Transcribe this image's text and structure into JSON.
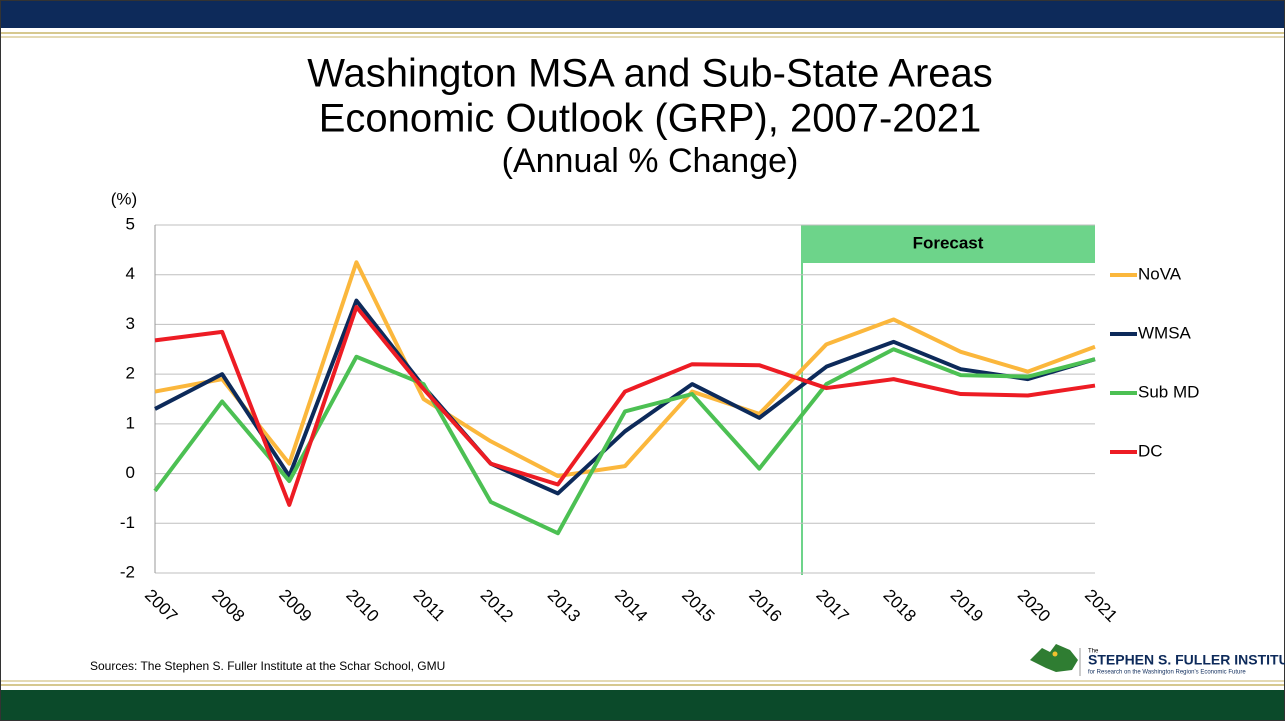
{
  "chart_data": {
    "type": "line",
    "title": [
      "Washington MSA and Sub-State Areas",
      "Economic Outlook (GRP), 2007-2021"
    ],
    "subtitle": "(Annual % Change)",
    "y_label": "(%)",
    "annotation": "Forecast",
    "source": "Sources: The Stephen S. Fuller Institute at the Schar School, GMU",
    "logo": {
      "small": "The",
      "name": "STEPHEN S. FULLER INSTITUTE",
      "tagline": "for Research on the Washington Region's Economic Future"
    },
    "categories": [
      "2007",
      "2008",
      "2009",
      "2010",
      "2011",
      "2012",
      "2013",
      "2014",
      "2015",
      "2016",
      "2017",
      "2018",
      "2019",
      "2020",
      "2021"
    ],
    "series": [
      {
        "name": "NoVA",
        "color": "#fbb73c",
        "values": [
          1.65,
          1.9,
          0.2,
          4.25,
          1.5,
          0.65,
          -0.05,
          0.15,
          1.65,
          1.2,
          2.6,
          3.1,
          2.45,
          2.05,
          2.55
        ]
      },
      {
        "name": "WMSA",
        "color": "#0d2a5a",
        "values": [
          1.3,
          2.0,
          -0.05,
          3.48,
          1.75,
          0.2,
          -0.4,
          0.85,
          1.8,
          1.12,
          2.15,
          2.65,
          2.1,
          1.9,
          2.3
        ]
      },
      {
        "name": "Sub MD",
        "color": "#4cc053",
        "values": [
          -0.35,
          1.45,
          -0.15,
          2.35,
          1.8,
          -0.57,
          -1.2,
          1.25,
          1.6,
          0.1,
          1.8,
          2.5,
          1.98,
          1.95,
          2.3
        ]
      },
      {
        "name": "DC",
        "color": "#ed1c24",
        "values": [
          2.68,
          2.85,
          -0.63,
          3.35,
          1.7,
          0.2,
          -0.22,
          1.65,
          2.2,
          2.18,
          1.72,
          1.9,
          1.6,
          1.57,
          1.77
        ]
      }
    ],
    "ylim": [
      -2,
      5
    ],
    "yticks": [
      -2,
      -1,
      0,
      1,
      2,
      3,
      4,
      5
    ],
    "grid": true
  }
}
